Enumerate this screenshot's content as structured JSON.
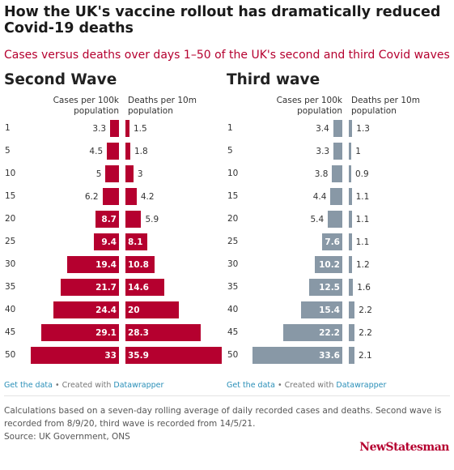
{
  "title": "How the UK's vaccine rollout has dramatically reduced Covid-19 deaths",
  "subtitle": "Cases versus deaths over days 1–50 of the UK's second and third Covid waves",
  "colors": {
    "second_wave": "#b5002f",
    "third_wave": "#8898a6",
    "subtitle": "#b5002f"
  },
  "panels": [
    {
      "title": "Second Wave",
      "cases_header": "Cases per 100k population",
      "deaths_header": "Deaths per 10m population"
    },
    {
      "title": "Third wave",
      "cases_header": "Cases per 100k population",
      "deaths_header": "Deaths per 10m population"
    }
  ],
  "chart_data": {
    "type": "bar",
    "categories": [
      "1",
      "5",
      "10",
      "15",
      "20",
      "25",
      "30",
      "35",
      "40",
      "45",
      "50"
    ],
    "panels": [
      {
        "name": "Second Wave",
        "series": [
          {
            "name": "Cases per 100k population",
            "values": [
              3.3,
              4.5,
              5,
              6.2,
              8.7,
              9.4,
              19.4,
              21.7,
              24.4,
              29.1,
              33
            ]
          },
          {
            "name": "Deaths per 10m population",
            "values": [
              1.5,
              1.8,
              3,
              4.2,
              5.9,
              8.1,
              10.8,
              14.6,
              20,
              28.3,
              35.9
            ]
          }
        ]
      },
      {
        "name": "Third wave",
        "series": [
          {
            "name": "Cases per 100k population",
            "values": [
              3.4,
              3.3,
              3.8,
              4.4,
              5.4,
              7.6,
              10.2,
              12.5,
              15.4,
              22.2,
              33.6
            ]
          },
          {
            "name": "Deaths per 10m population",
            "values": [
              1.3,
              1,
              0.9,
              1.1,
              1.1,
              1.1,
              1.2,
              1.6,
              2.2,
              2.2,
              2.1
            ]
          }
        ]
      }
    ]
  },
  "footer": {
    "get_data": "Get the data",
    "separator": " • Created with ",
    "datawrapper": "Datawrapper",
    "notes": "Calculations based on a seven-day rolling average of daily recorded cases and deaths. Second wave is recorded from 8/9/20, third wave is recorded from 14/5/21.",
    "source": "Source: UK Government, ONS",
    "logo": "NewStatesman"
  }
}
